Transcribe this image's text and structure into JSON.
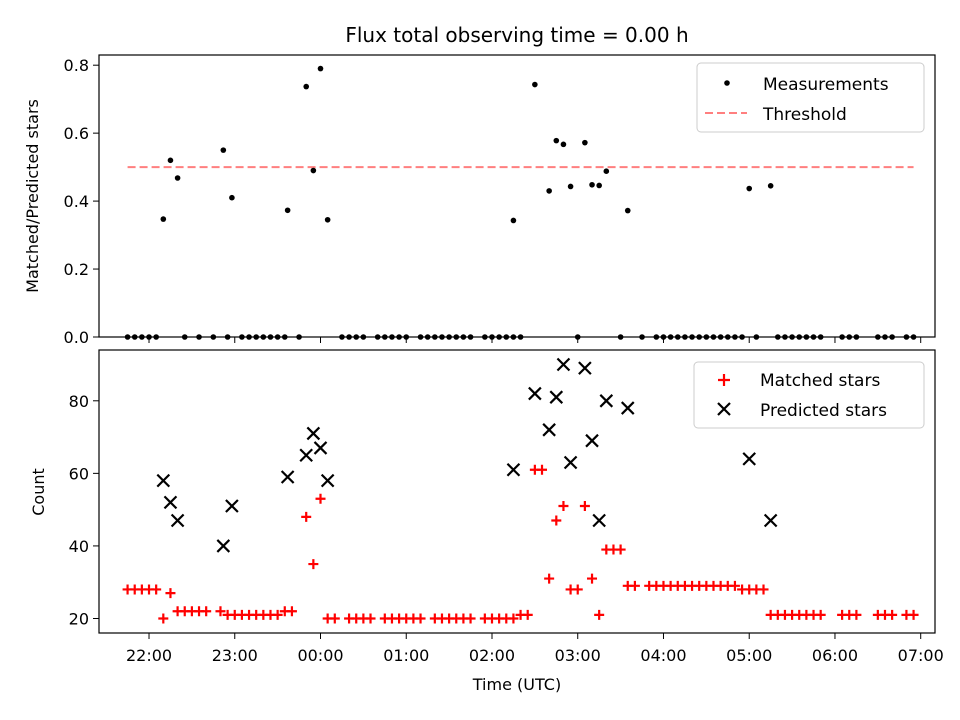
{
  "chart_data": [
    {
      "type": "scatter",
      "title": "Flux total observing time = 0.00 h",
      "xlabel": "",
      "ylabel": "Matched/Predicted stars",
      "ylim": [
        0,
        0.83
      ],
      "yticks": [
        "0.0",
        "0.2",
        "0.4",
        "0.6",
        "0.8"
      ],
      "ytick_values": [
        0,
        0.2,
        0.4,
        0.6,
        0.8
      ],
      "grid": false,
      "legend_position": "top-right",
      "colors": {
        "measurements": "#000000",
        "threshold": "#ff7f7f"
      },
      "series": [
        {
          "name": "Measurements",
          "marker": "dot",
          "points": [
            [
              "21:45",
              0
            ],
            [
              "21:50",
              0
            ],
            [
              "21:55",
              0
            ],
            [
              "22:00",
              0
            ],
            [
              "22:05",
              0
            ],
            [
              "22:10",
              0.347
            ],
            [
              "22:15",
              0.52
            ],
            [
              "22:20",
              0.468
            ],
            [
              "22:25",
              0
            ],
            [
              "22:35",
              0
            ],
            [
              "22:45",
              0
            ],
            [
              "22:55",
              0
            ],
            [
              "22:52",
              0.55
            ],
            [
              "22:58",
              0.41
            ],
            [
              "23:05",
              0
            ],
            [
              "23:10",
              0
            ],
            [
              "23:15",
              0
            ],
            [
              "23:20",
              0
            ],
            [
              "23:25",
              0
            ],
            [
              "23:30",
              0
            ],
            [
              "23:35",
              0
            ],
            [
              "23:45",
              0
            ],
            [
              "23:37",
              0.373
            ],
            [
              "23:50",
              0.737
            ],
            [
              "23:55",
              0.49
            ],
            [
              "00:00",
              0.79
            ],
            [
              "00:05",
              0.345
            ],
            [
              "00:15",
              0
            ],
            [
              "00:20",
              0
            ],
            [
              "00:25",
              0
            ],
            [
              "00:30",
              0
            ],
            [
              "00:40",
              0
            ],
            [
              "00:45",
              0
            ],
            [
              "00:50",
              0
            ],
            [
              "00:55",
              0
            ],
            [
              "01:00",
              0
            ],
            [
              "01:10",
              0
            ],
            [
              "01:15",
              0
            ],
            [
              "01:20",
              0
            ],
            [
              "01:25",
              0
            ],
            [
              "01:30",
              0
            ],
            [
              "01:35",
              0
            ],
            [
              "01:40",
              0
            ],
            [
              "01:45",
              0
            ],
            [
              "01:55",
              0
            ],
            [
              "02:00",
              0
            ],
            [
              "02:05",
              0
            ],
            [
              "02:10",
              0
            ],
            [
              "02:15",
              0
            ],
            [
              "02:20",
              0
            ],
            [
              "02:15",
              0.343
            ],
            [
              "02:30",
              0.743
            ],
            [
              "02:40",
              0.43
            ],
            [
              "02:45",
              0.578
            ],
            [
              "02:50",
              0.567
            ],
            [
              "02:55",
              0.443
            ],
            [
              "03:00",
              0
            ],
            [
              "03:05",
              0.572
            ],
            [
              "03:10",
              0.448
            ],
            [
              "03:15",
              0.446
            ],
            [
              "03:20",
              0.488
            ],
            [
              "03:35",
              0.372
            ],
            [
              "03:30",
              0
            ],
            [
              "03:45",
              0
            ],
            [
              "03:55",
              0
            ],
            [
              "04:00",
              0
            ],
            [
              "04:05",
              0
            ],
            [
              "04:10",
              0
            ],
            [
              "04:15",
              0
            ],
            [
              "04:20",
              0
            ],
            [
              "04:25",
              0
            ],
            [
              "04:30",
              0
            ],
            [
              "04:35",
              0
            ],
            [
              "04:40",
              0
            ],
            [
              "04:45",
              0
            ],
            [
              "04:50",
              0
            ],
            [
              "04:55",
              0
            ],
            [
              "05:00",
              0.437
            ],
            [
              "05:15",
              0.445
            ],
            [
              "05:05",
              0
            ],
            [
              "05:20",
              0
            ],
            [
              "05:25",
              0
            ],
            [
              "05:30",
              0
            ],
            [
              "05:35",
              0
            ],
            [
              "05:40",
              0
            ],
            [
              "05:45",
              0
            ],
            [
              "05:50",
              0
            ],
            [
              "06:05",
              0
            ],
            [
              "06:10",
              0
            ],
            [
              "06:15",
              0
            ],
            [
              "06:30",
              0
            ],
            [
              "06:35",
              0
            ],
            [
              "06:40",
              0
            ],
            [
              "06:50",
              0
            ],
            [
              "06:55",
              0
            ]
          ]
        },
        {
          "name": "Threshold",
          "marker": "dashed-line",
          "points": [
            [
              "21:45",
              0.5
            ],
            [
              "06:55",
              0.5
            ]
          ]
        }
      ]
    },
    {
      "type": "scatter",
      "title": "",
      "xlabel": "Time (UTC)",
      "ylabel": "Count",
      "ylim": [
        16,
        94
      ],
      "yticks": [
        "20",
        "40",
        "60",
        "80"
      ],
      "ytick_values": [
        20,
        40,
        60,
        80
      ],
      "xlim": [
        "21:25",
        "07:10"
      ],
      "xticks": [
        "22:00",
        "23:00",
        "00:00",
        "01:00",
        "02:00",
        "03:00",
        "04:00",
        "05:00",
        "06:00",
        "07:00"
      ],
      "grid": false,
      "legend_position": "top-right",
      "colors": {
        "matched": "#ff0000",
        "predicted": "#000000"
      },
      "series": [
        {
          "name": "Matched stars",
          "marker": "plus",
          "points": [
            [
              "21:45",
              28
            ],
            [
              "21:50",
              28
            ],
            [
              "21:55",
              28
            ],
            [
              "22:00",
              28
            ],
            [
              "22:05",
              28
            ],
            [
              "22:10",
              20
            ],
            [
              "22:15",
              27
            ],
            [
              "22:20",
              22
            ],
            [
              "22:25",
              22
            ],
            [
              "22:30",
              22
            ],
            [
              "22:35",
              22
            ],
            [
              "22:40",
              22
            ],
            [
              "22:50",
              22
            ],
            [
              "22:55",
              21
            ],
            [
              "23:00",
              21
            ],
            [
              "23:05",
              21
            ],
            [
              "23:10",
              21
            ],
            [
              "23:15",
              21
            ],
            [
              "23:20",
              21
            ],
            [
              "23:25",
              21
            ],
            [
              "23:30",
              21
            ],
            [
              "23:35",
              22
            ],
            [
              "23:40",
              22
            ],
            [
              "23:50",
              48
            ],
            [
              "23:55",
              35
            ],
            [
              "00:00",
              53
            ],
            [
              "00:05",
              20
            ],
            [
              "00:10",
              20
            ],
            [
              "00:20",
              20
            ],
            [
              "00:25",
              20
            ],
            [
              "00:30",
              20
            ],
            [
              "00:35",
              20
            ],
            [
              "00:45",
              20
            ],
            [
              "00:50",
              20
            ],
            [
              "00:55",
              20
            ],
            [
              "01:00",
              20
            ],
            [
              "01:05",
              20
            ],
            [
              "01:10",
              20
            ],
            [
              "01:20",
              20
            ],
            [
              "01:25",
              20
            ],
            [
              "01:30",
              20
            ],
            [
              "01:35",
              20
            ],
            [
              "01:40",
              20
            ],
            [
              "01:45",
              20
            ],
            [
              "01:55",
              20
            ],
            [
              "02:00",
              20
            ],
            [
              "02:05",
              20
            ],
            [
              "02:10",
              20
            ],
            [
              "02:15",
              20
            ],
            [
              "02:20",
              21
            ],
            [
              "02:25",
              21
            ],
            [
              "02:30",
              61
            ],
            [
              "02:35",
              61
            ],
            [
              "02:40",
              31
            ],
            [
              "02:45",
              47
            ],
            [
              "02:50",
              51
            ],
            [
              "02:55",
              28
            ],
            [
              "03:00",
              28
            ],
            [
              "03:05",
              51
            ],
            [
              "03:10",
              31
            ],
            [
              "03:15",
              21
            ],
            [
              "03:20",
              39
            ],
            [
              "03:25",
              39
            ],
            [
              "03:30",
              39
            ],
            [
              "03:35",
              29
            ],
            [
              "03:40",
              29
            ],
            [
              "03:50",
              29
            ],
            [
              "03:55",
              29
            ],
            [
              "04:00",
              29
            ],
            [
              "04:05",
              29
            ],
            [
              "04:10",
              29
            ],
            [
              "04:15",
              29
            ],
            [
              "04:20",
              29
            ],
            [
              "04:25",
              29
            ],
            [
              "04:30",
              29
            ],
            [
              "04:35",
              29
            ],
            [
              "04:40",
              29
            ],
            [
              "04:45",
              29
            ],
            [
              "04:50",
              29
            ],
            [
              "04:55",
              28
            ],
            [
              "05:00",
              28
            ],
            [
              "05:05",
              28
            ],
            [
              "05:10",
              28
            ],
            [
              "05:15",
              21
            ],
            [
              "05:20",
              21
            ],
            [
              "05:25",
              21
            ],
            [
              "05:30",
              21
            ],
            [
              "05:35",
              21
            ],
            [
              "05:40",
              21
            ],
            [
              "05:45",
              21
            ],
            [
              "05:50",
              21
            ],
            [
              "06:05",
              21
            ],
            [
              "06:10",
              21
            ],
            [
              "06:15",
              21
            ],
            [
              "06:30",
              21
            ],
            [
              "06:35",
              21
            ],
            [
              "06:40",
              21
            ],
            [
              "06:50",
              21
            ],
            [
              "06:55",
              21
            ]
          ]
        },
        {
          "name": "Predicted stars",
          "marker": "x",
          "points": [
            [
              "22:10",
              58
            ],
            [
              "22:15",
              52
            ],
            [
              "22:20",
              47
            ],
            [
              "22:52",
              40
            ],
            [
              "22:58",
              51
            ],
            [
              "23:37",
              59
            ],
            [
              "23:50",
              65
            ],
            [
              "23:55",
              71
            ],
            [
              "00:00",
              67
            ],
            [
              "00:05",
              58
            ],
            [
              "02:15",
              61
            ],
            [
              "02:30",
              82
            ],
            [
              "02:40",
              72
            ],
            [
              "02:45",
              81
            ],
            [
              "02:50",
              90
            ],
            [
              "02:55",
              63
            ],
            [
              "03:05",
              89
            ],
            [
              "03:10",
              69
            ],
            [
              "03:15",
              47
            ],
            [
              "03:20",
              80
            ],
            [
              "03:35",
              78
            ],
            [
              "05:00",
              64
            ],
            [
              "05:15",
              47
            ]
          ]
        }
      ]
    }
  ]
}
